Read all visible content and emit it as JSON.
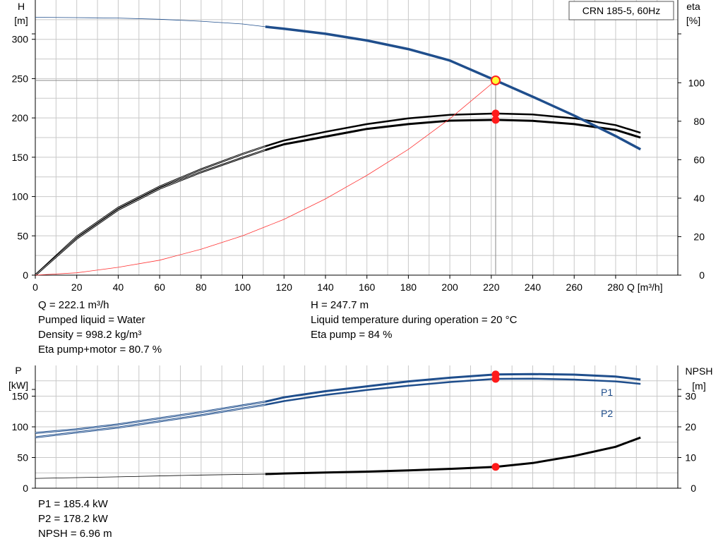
{
  "chart_data": [
    {
      "type": "line",
      "title": "CRN 185-5, 60Hz",
      "xlabel": "Q [m³/h]",
      "ylabel_lines": [
        "H",
        "[m]"
      ],
      "y2label_lines": [
        "eta",
        "[%]"
      ],
      "xlim": [
        0,
        310
      ],
      "ylim": [
        0,
        350
      ],
      "y2lim": [
        0,
        143
      ],
      "x_ticks": [
        "0",
        "20",
        "40",
        "60",
        "80",
        "100",
        "120",
        "140",
        "160",
        "180",
        "200",
        "220",
        "240",
        "260",
        "280"
      ],
      "y_ticks": [
        "0",
        "50",
        "100",
        "150",
        "200",
        "250",
        "300"
      ],
      "y2_ticks": [
        "0",
        "20",
        "40",
        "60",
        "80",
        "100"
      ],
      "grid": true,
      "series": [
        {
          "name": "",
          "axis": "left",
          "color": "#1f4e8c",
          "x": [
            0,
            20,
            40,
            60,
            80,
            100,
            111,
            120,
            140,
            160,
            180,
            200,
            222.1,
            240,
            260,
            280,
            292
          ],
          "y": [
            328,
            327.6,
            327,
            325.5,
            323,
            319.5,
            316,
            313.5,
            307,
            298.5,
            287.5,
            273,
            247.7,
            227,
            203,
            177,
            160
          ]
        },
        {
          "name": "",
          "axis": "right",
          "color": "#000000",
          "x": [
            0,
            20,
            40,
            60,
            80,
            100,
            111,
            120,
            140,
            160,
            180,
            200,
            222.1,
            240,
            260,
            280,
            292
          ],
          "y": [
            0,
            20,
            35,
            46,
            55,
            63,
            67,
            70,
            74.5,
            78.5,
            81.5,
            83.3,
            84,
            83.5,
            81.5,
            78,
            74
          ]
        },
        {
          "name": "",
          "axis": "right",
          "color": "#000000",
          "x": [
            0,
            20,
            40,
            60,
            80,
            100,
            111,
            120,
            140,
            160,
            180,
            200,
            222.1,
            240,
            260,
            280,
            292
          ],
          "y": [
            0,
            19,
            34,
            45,
            53.5,
            61,
            65,
            68,
            72,
            76,
            78.5,
            80.3,
            80.7,
            80.2,
            78.5,
            75.5,
            71.5
          ]
        },
        {
          "name": "",
          "axis": "left",
          "color": "#ff3333",
          "x": [
            0,
            20,
            40,
            60,
            80,
            100,
            120,
            140,
            160,
            180,
            200,
            222.1
          ],
          "y": [
            0,
            3,
            10,
            19,
            33,
            50,
            71,
            97,
            127,
            160,
            199,
            247.7
          ]
        }
      ],
      "operating_point": {
        "x": 222.1,
        "h": 247.7,
        "eta_pump": 84,
        "eta_total": 80.7
      }
    },
    {
      "type": "line",
      "xlabel": "",
      "ylabel_lines": [
        "P",
        "[kW]"
      ],
      "y2label_lines": [
        "NPSH",
        "[m]"
      ],
      "xlim": [
        0,
        310
      ],
      "ylim": [
        0,
        200
      ],
      "y2lim": [
        0,
        40
      ],
      "y_ticks": [
        "0",
        "50",
        "100",
        "150"
      ],
      "y2_ticks": [
        "0",
        "10",
        "20",
        "30"
      ],
      "grid": true,
      "series": [
        {
          "name": "P1",
          "axis": "left",
          "color": "#1f4e8c",
          "x": [
            0,
            20,
            40,
            60,
            80,
            100,
            111,
            120,
            140,
            160,
            180,
            200,
            222.1,
            240,
            260,
            280,
            292
          ],
          "y": [
            90,
            96,
            104,
            114,
            124,
            135,
            141,
            148,
            158,
            166,
            174,
            180,
            185.4,
            186,
            185,
            182,
            177
          ]
        },
        {
          "name": "P2",
          "axis": "left",
          "color": "#1f4e8c",
          "x": [
            0,
            20,
            40,
            60,
            80,
            100,
            111,
            120,
            140,
            160,
            180,
            200,
            222.1,
            240,
            260,
            280,
            292
          ],
          "y": [
            83,
            91,
            99,
            109,
            119,
            130,
            136,
            142,
            152,
            160,
            167,
            173,
            178.2,
            178.5,
            177,
            174,
            170
          ]
        },
        {
          "name": "",
          "axis": "right",
          "color": "#000000",
          "x": [
            0,
            40,
            80,
            111,
            120,
            140,
            160,
            180,
            200,
            222.1,
            240,
            260,
            280,
            292
          ],
          "y": [
            3.2,
            3.7,
            4.3,
            4.6,
            4.8,
            5.1,
            5.4,
            5.8,
            6.3,
            6.96,
            8.2,
            10.5,
            13.5,
            16.5
          ]
        }
      ],
      "operating_point": {
        "x": 222.1,
        "p1": 185.4,
        "p2": 178.2,
        "npsh": 6.96
      }
    }
  ],
  "info_top": {
    "col1": [
      "Q = 222.1 m³/h",
      "Pumped liquid = Water",
      "Density = 998.2 kg/m³",
      "Eta pump+motor = 80.7 %"
    ],
    "col2": [
      "H = 247.7 m",
      "Liquid temperature during operation = 20 °C",
      "Eta pump = 84 %"
    ]
  },
  "info_bottom": [
    "P1 = 185.4 kW",
    "P2 = 178.2 kW",
    "NPSH = 6.96 m"
  ]
}
